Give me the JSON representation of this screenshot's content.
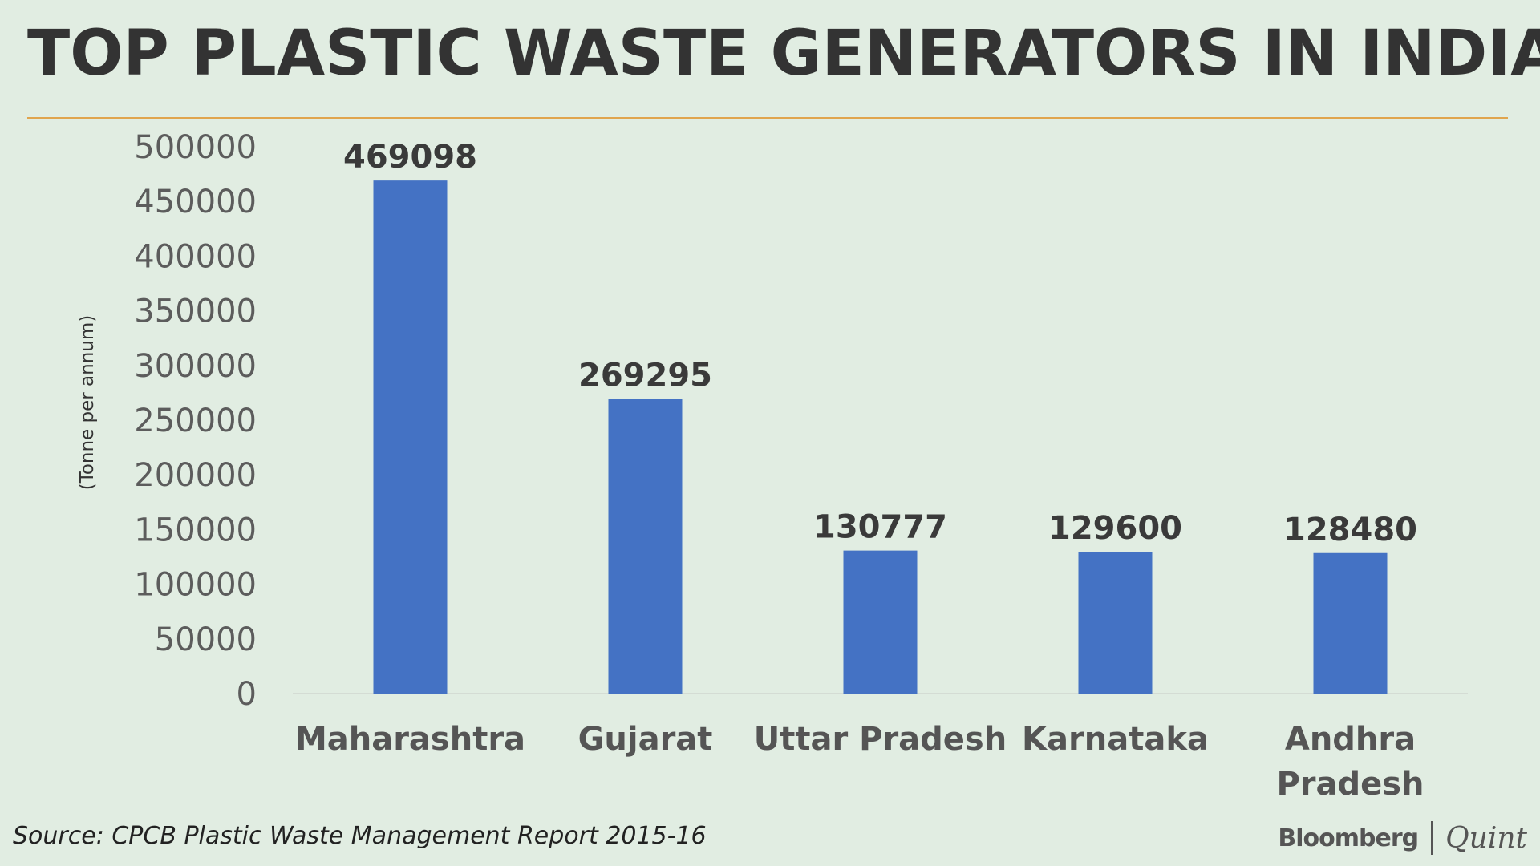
{
  "chart_data": {
    "type": "bar",
    "title": "TOP PLASTIC WASTE GENERATORS IN INDIA",
    "ylabel": "(Tonne per annum)",
    "xlabel": "",
    "categories": [
      "Maharashtra",
      "Gujarat",
      "Uttar Pradesh",
      "Karnataka",
      "Andhra Pradesh"
    ],
    "values": [
      469098,
      269295,
      130777,
      129600,
      128480
    ],
    "value_labels": [
      "469098",
      "269295",
      "130777",
      "129600",
      "128480"
    ],
    "ylim": [
      0,
      500000
    ],
    "yticks": [
      0,
      50000,
      100000,
      150000,
      200000,
      250000,
      300000,
      350000,
      400000,
      450000,
      500000
    ],
    "ytick_labels": [
      "0",
      "50000",
      "100000",
      "150000",
      "200000",
      "250000",
      "300000",
      "350000",
      "400000",
      "450000",
      "500000"
    ],
    "grid": false,
    "legend": "none",
    "bar_color": "#4472c4"
  },
  "footer": {
    "source": "Source: CPCB Plastic Waste Management Report 2015-16",
    "logo_left": "Bloomberg",
    "logo_right": "Quint"
  },
  "colors": {
    "background": "#e1ede2",
    "rule": "#e0a54e",
    "bar": "#4472c4"
  }
}
